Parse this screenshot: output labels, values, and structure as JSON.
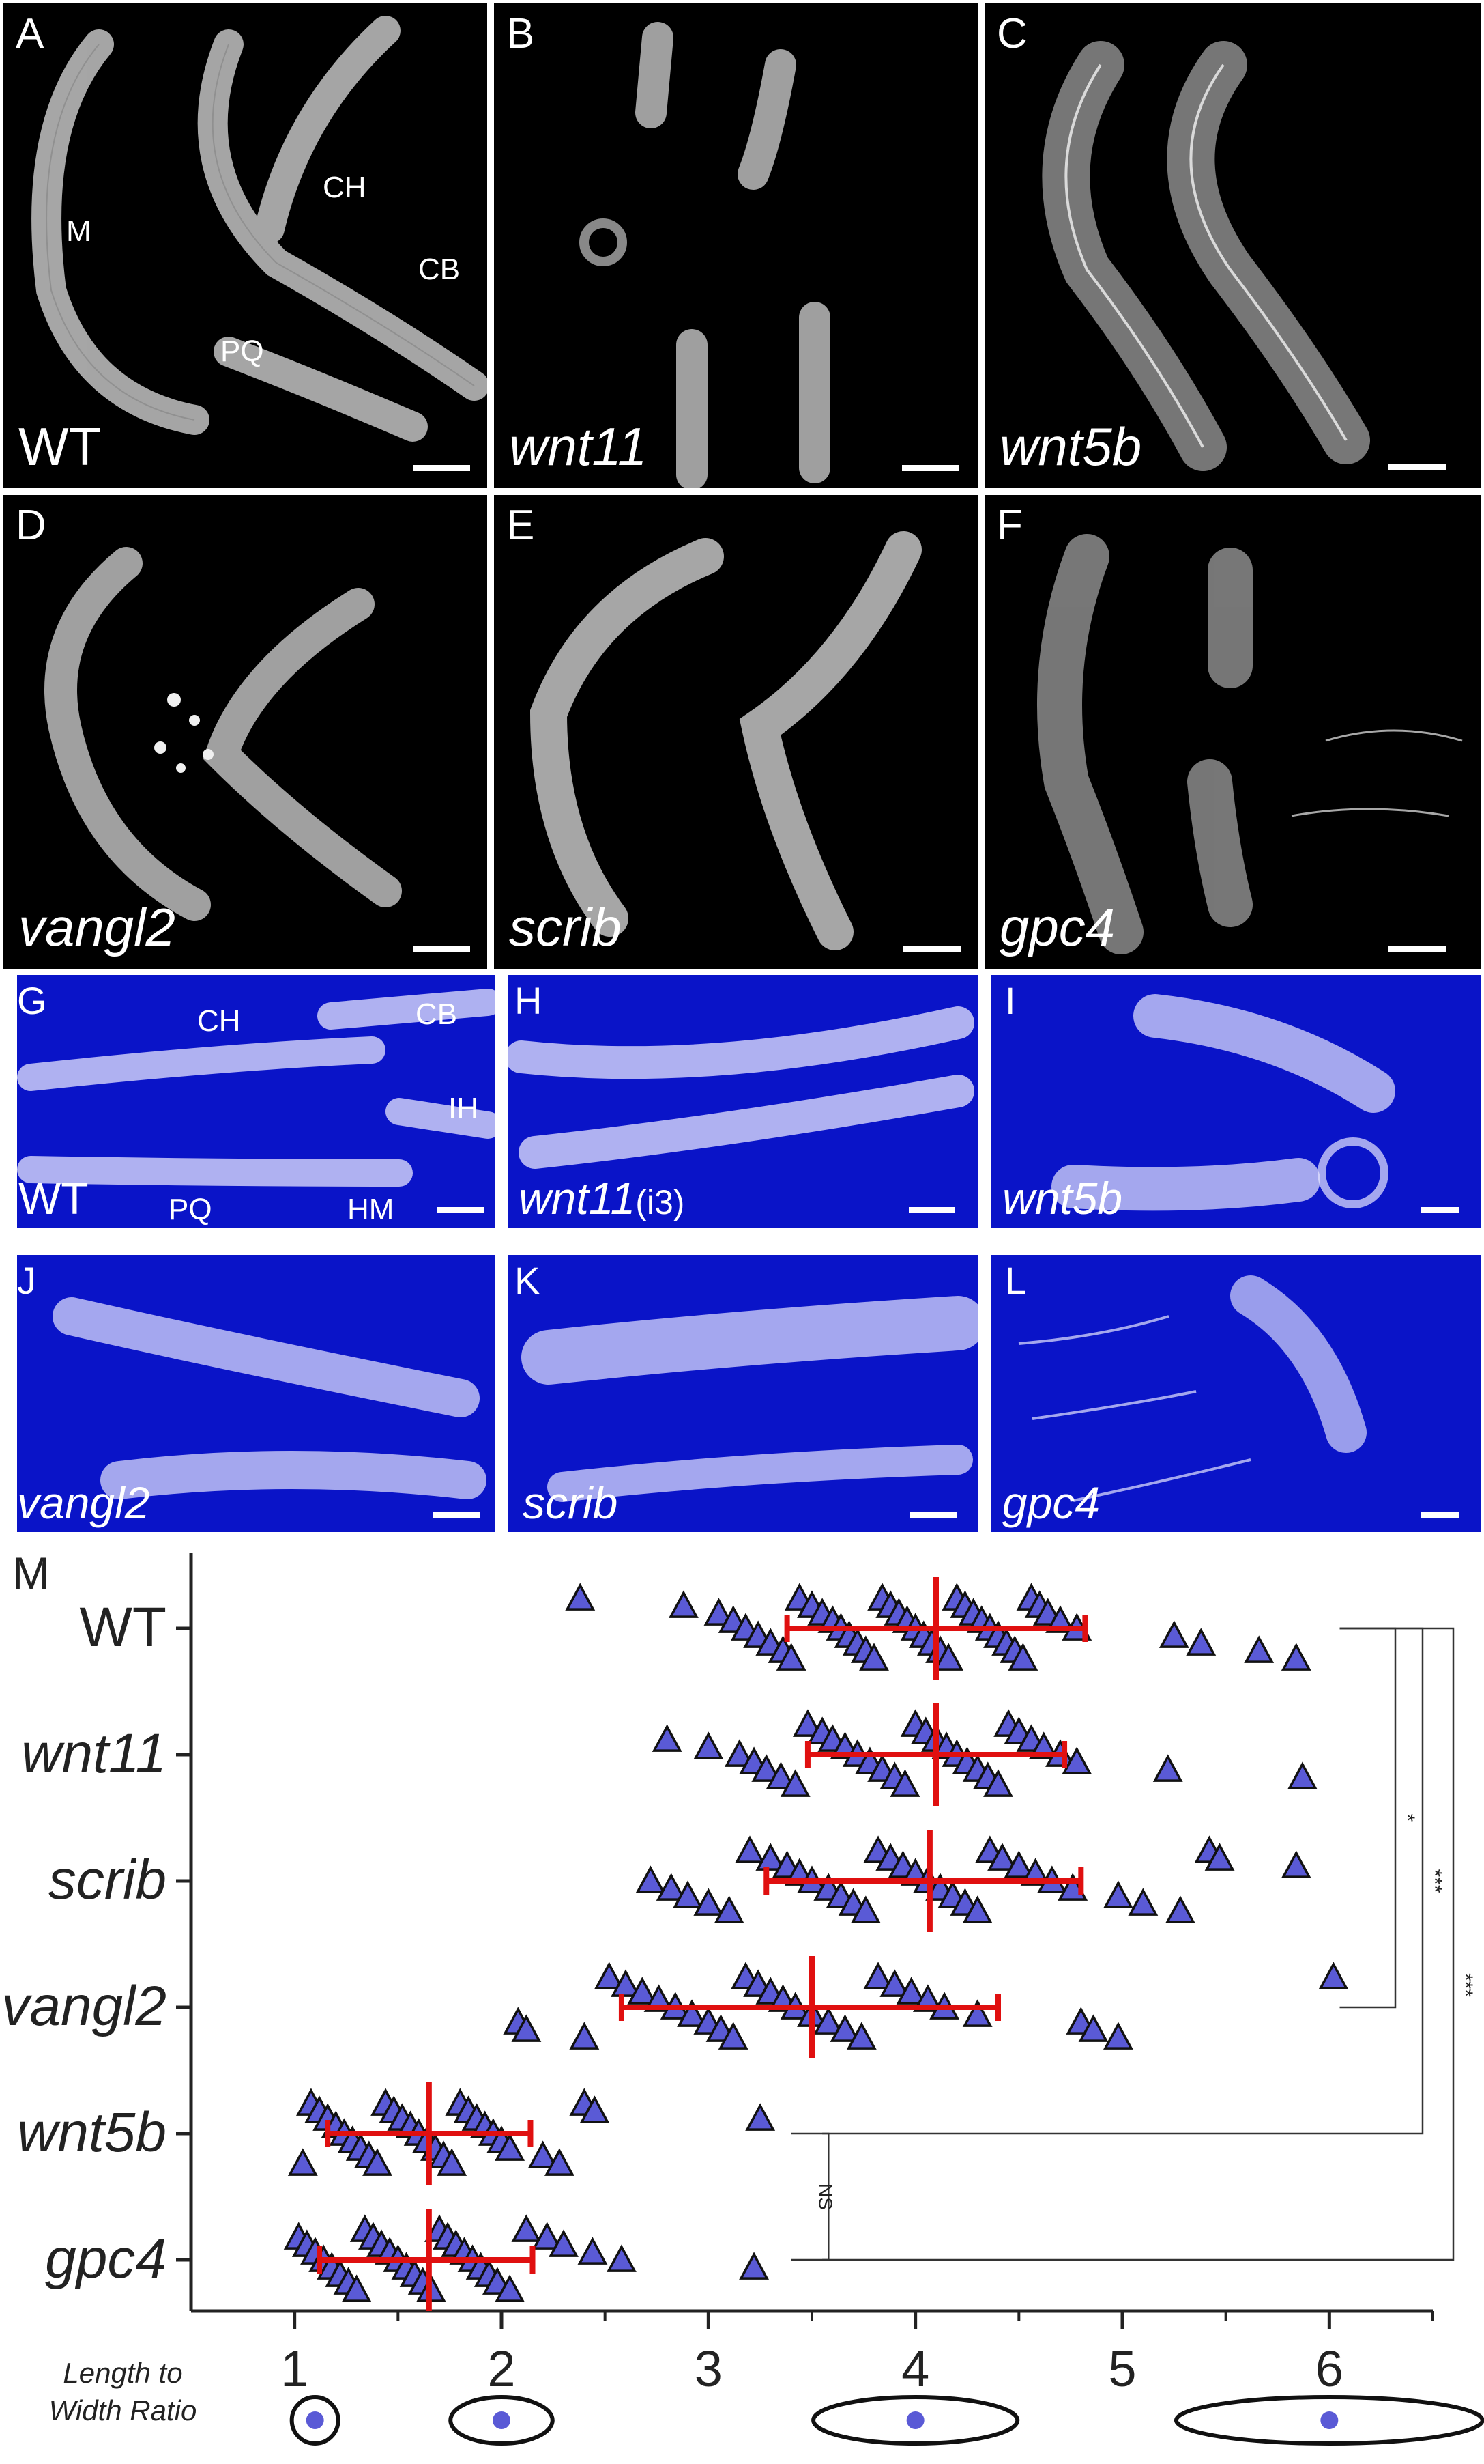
{
  "panels": [
    {
      "id": "A",
      "genotype": "WT",
      "italic": false,
      "bg": "#000000",
      "annotations": [
        "M",
        "CH",
        "CB",
        "PQ"
      ]
    },
    {
      "id": "B",
      "genotype": "wnt11",
      "italic": true,
      "bg": "#000000",
      "annotations": []
    },
    {
      "id": "C",
      "genotype": "wnt5b",
      "italic": true,
      "bg": "#000000",
      "annotations": []
    },
    {
      "id": "D",
      "genotype": "vangl2",
      "italic": true,
      "bg": "#000000",
      "annotations": []
    },
    {
      "id": "E",
      "genotype": "scrib",
      "italic": true,
      "bg": "#000000",
      "annotations": []
    },
    {
      "id": "F",
      "genotype": "gpc4",
      "italic": true,
      "bg": "#000000",
      "annotations": []
    },
    {
      "id": "G",
      "genotype": "WT",
      "italic": false,
      "bg": "#0a14c8",
      "annotations": [
        "CH",
        "CB",
        "IH",
        "PQ",
        "HM"
      ]
    },
    {
      "id": "H",
      "genotype": "wnt11",
      "suffix": "(i3)",
      "italic": true,
      "bg": "#0a14c8",
      "annotations": []
    },
    {
      "id": "I",
      "genotype": "wnt5b",
      "italic": true,
      "bg": "#0a14c8",
      "annotations": []
    },
    {
      "id": "J",
      "genotype": "vangl2",
      "italic": true,
      "bg": "#0a14c8",
      "annotations": []
    },
    {
      "id": "K",
      "genotype": "scrib",
      "italic": true,
      "bg": "#0a14c8",
      "annotations": []
    },
    {
      "id": "L",
      "genotype": "gpc4",
      "italic": true,
      "bg": "#0a14c8",
      "annotations": []
    }
  ],
  "chart_data": {
    "panel_label": "M",
    "type": "scatter",
    "orientation": "horizontal",
    "categories": [
      "WT",
      "wnt11",
      "scrib",
      "vangl2",
      "wnt5b",
      "gpc4"
    ],
    "xlim": [
      0.5,
      6.5
    ],
    "xticks": [
      1,
      2,
      3,
      4,
      5,
      6
    ],
    "marker": "triangle",
    "marker_color": "#5a5ad6",
    "summary_color": "#e01010",
    "series": [
      {
        "name": "WT",
        "mean": 4.1,
        "sd_low": 3.38,
        "sd_high": 4.82,
        "values": [
          2.38,
          2.88,
          3.05,
          3.12,
          3.18,
          3.24,
          3.3,
          3.36,
          3.4,
          3.44,
          3.5,
          3.55,
          3.6,
          3.64,
          3.68,
          3.72,
          3.76,
          3.8,
          3.84,
          3.88,
          3.92,
          3.96,
          4.0,
          4.04,
          4.08,
          4.12,
          4.16,
          4.2,
          4.24,
          4.28,
          4.32,
          4.36,
          4.4,
          4.44,
          4.48,
          4.52,
          4.56,
          4.6,
          4.64,
          4.7,
          4.78,
          5.25,
          5.38,
          5.66,
          5.84
        ]
      },
      {
        "name": "wnt11",
        "mean": 4.1,
        "sd_low": 3.48,
        "sd_high": 4.72,
        "values": [
          2.8,
          3.0,
          3.15,
          3.22,
          3.28,
          3.35,
          3.42,
          3.48,
          3.55,
          3.6,
          3.66,
          3.72,
          3.78,
          3.84,
          3.9,
          3.95,
          4.0,
          4.05,
          4.1,
          4.15,
          4.2,
          4.25,
          4.3,
          4.35,
          4.4,
          4.45,
          4.5,
          4.56,
          4.62,
          4.7,
          4.78,
          5.22,
          5.87
        ]
      },
      {
        "name": "scrib",
        "mean": 4.07,
        "sd_low": 3.28,
        "sd_high": 4.8,
        "values": [
          2.72,
          2.82,
          2.9,
          3.0,
          3.1,
          3.2,
          3.3,
          3.38,
          3.44,
          3.5,
          3.58,
          3.64,
          3.7,
          3.76,
          3.82,
          3.88,
          3.94,
          4.0,
          4.06,
          4.12,
          4.18,
          4.24,
          4.3,
          4.36,
          4.42,
          4.5,
          4.58,
          4.66,
          4.76,
          4.98,
          5.1,
          5.28,
          5.42,
          5.47,
          5.84
        ]
      },
      {
        "name": "vangl2",
        "mean": 3.5,
        "sd_low": 2.58,
        "sd_high": 4.4,
        "values": [
          2.08,
          2.12,
          2.4,
          2.52,
          2.6,
          2.68,
          2.76,
          2.84,
          2.92,
          3.0,
          3.06,
          3.12,
          3.18,
          3.24,
          3.3,
          3.36,
          3.42,
          3.5,
          3.58,
          3.66,
          3.74,
          3.82,
          3.9,
          3.98,
          4.06,
          4.14,
          4.3,
          4.8,
          4.86,
          4.98,
          6.02
        ]
      },
      {
        "name": "wnt5b",
        "mean": 1.65,
        "sd_low": 1.16,
        "sd_high": 2.14,
        "values": [
          1.04,
          1.08,
          1.12,
          1.16,
          1.2,
          1.24,
          1.28,
          1.32,
          1.36,
          1.4,
          1.44,
          1.48,
          1.52,
          1.56,
          1.6,
          1.64,
          1.68,
          1.72,
          1.76,
          1.8,
          1.84,
          1.88,
          1.92,
          1.96,
          2.0,
          2.04,
          2.2,
          2.28,
          2.4,
          2.45,
          3.25
        ]
      },
      {
        "name": "gpc4",
        "mean": 1.65,
        "sd_low": 1.12,
        "sd_high": 2.15,
        "values": [
          1.02,
          1.06,
          1.1,
          1.14,
          1.18,
          1.22,
          1.26,
          1.3,
          1.34,
          1.38,
          1.42,
          1.46,
          1.5,
          1.54,
          1.58,
          1.62,
          1.66,
          1.7,
          1.74,
          1.78,
          1.82,
          1.86,
          1.9,
          1.94,
          1.98,
          2.04,
          2.12,
          2.22,
          2.3,
          2.44,
          2.58,
          3.22
        ]
      }
    ],
    "significance": [
      {
        "a": "WT",
        "b": "vangl2",
        "label": "*"
      },
      {
        "a": "WT",
        "b": "wnt5b",
        "label": "***"
      },
      {
        "a": "WT",
        "b": "gpc4",
        "label": "***"
      },
      {
        "a": "wnt5b",
        "b": "gpc4",
        "label": "NS"
      }
    ],
    "legend_caption": [
      "Length to",
      "Width Ratio"
    ]
  }
}
